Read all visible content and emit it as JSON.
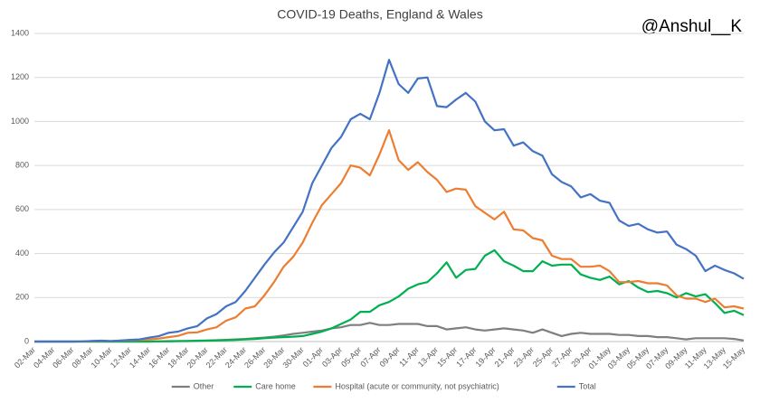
{
  "chart_data": {
    "type": "line",
    "title": "COVID-19 Deaths, England & Wales",
    "annotations": [
      "@Anshul__K"
    ],
    "categories": [
      "02-Mar",
      null,
      "04-Mar",
      null,
      "06-Mar",
      null,
      "08-Mar",
      null,
      "10-Mar",
      null,
      "12-Mar",
      null,
      "14-Mar",
      null,
      "16-Mar",
      null,
      "18-Mar",
      null,
      "20-Mar",
      null,
      "22-Mar",
      null,
      "24-Mar",
      null,
      "26-Mar",
      null,
      "28-Mar",
      null,
      "30-Mar",
      null,
      "01-Apr",
      null,
      "03-Apr",
      null,
      "05-Apr",
      null,
      "07-Apr",
      null,
      "09-Apr",
      null,
      "11-Apr",
      null,
      "13-Apr",
      null,
      "15-Apr",
      null,
      "17-Apr",
      null,
      "19-Apr",
      null,
      "21-Apr",
      null,
      "23-Apr",
      null,
      "25-Apr",
      null,
      "27-Apr",
      null,
      "29-Apr",
      null,
      "01-May",
      null,
      "03-May",
      null,
      "05-May",
      null,
      "07-May",
      null,
      "09-May",
      null,
      "11-May",
      null,
      "13-May",
      null,
      "15-May"
    ],
    "series": [
      {
        "name": "Other",
        "color": "#7f7f7f",
        "values": [
          0,
          0,
          0,
          0,
          0,
          0,
          0,
          0,
          0,
          0,
          0,
          0,
          0,
          1,
          2,
          2,
          3,
          4,
          5,
          6,
          8,
          10,
          12,
          15,
          18,
          22,
          28,
          35,
          40,
          45,
          50,
          60,
          65,
          75,
          75,
          85,
          75,
          75,
          80,
          80,
          80,
          70,
          70,
          55,
          60,
          65,
          55,
          50,
          55,
          60,
          55,
          50,
          40,
          55,
          40,
          25,
          35,
          40,
          35,
          35,
          35,
          30,
          30,
          25,
          25,
          20,
          20,
          15,
          10,
          15,
          15,
          15,
          15,
          12,
          5
        ]
      },
      {
        "name": "Care home",
        "color": "#00b050",
        "values": [
          0,
          0,
          0,
          0,
          0,
          0,
          0,
          0,
          0,
          0,
          0,
          0,
          0,
          1,
          1,
          2,
          2,
          3,
          4,
          5,
          6,
          8,
          10,
          12,
          15,
          18,
          20,
          22,
          25,
          35,
          45,
          60,
          80,
          100,
          135,
          135,
          165,
          180,
          205,
          240,
          260,
          270,
          310,
          360,
          290,
          325,
          330,
          390,
          415,
          365,
          345,
          320,
          320,
          365,
          345,
          350,
          350,
          305,
          290,
          280,
          295,
          260,
          275,
          245,
          225,
          230,
          220,
          200,
          220,
          205,
          215,
          175,
          130,
          140,
          120
        ]
      },
      {
        "name": "Hospital (acute or community, not psychiatric)",
        "color": "#ed7d31",
        "values": [
          0,
          0,
          0,
          0,
          0,
          1,
          2,
          3,
          2,
          4,
          6,
          8,
          10,
          14,
          20,
          26,
          40,
          42,
          55,
          65,
          95,
          110,
          150,
          160,
          210,
          270,
          340,
          385,
          450,
          540,
          620,
          670,
          720,
          800,
          790,
          755,
          850,
          960,
          825,
          780,
          815,
          770,
          735,
          680,
          695,
          690,
          615,
          585,
          555,
          590,
          510,
          505,
          470,
          460,
          390,
          375,
          375,
          340,
          340,
          345,
          320,
          270,
          270,
          275,
          265,
          265,
          255,
          210,
          195,
          195,
          180,
          195,
          155,
          160,
          150
        ]
      },
      {
        "name": "Total",
        "color": "#4472c4",
        "values": [
          0,
          0,
          0,
          0,
          0,
          1,
          3,
          4,
          2,
          5,
          8,
          10,
          18,
          25,
          40,
          45,
          60,
          70,
          105,
          125,
          160,
          180,
          230,
          290,
          350,
          405,
          450,
          520,
          590,
          720,
          800,
          880,
          930,
          1010,
          1035,
          1010,
          1130,
          1280,
          1170,
          1130,
          1195,
          1200,
          1070,
          1065,
          1100,
          1130,
          1090,
          1000,
          960,
          965,
          890,
          905,
          865,
          845,
          760,
          725,
          705,
          655,
          670,
          640,
          630,
          550,
          525,
          535,
          510,
          495,
          500,
          440,
          420,
          390,
          320,
          345,
          325,
          310,
          285
        ]
      }
    ],
    "ylim": [
      0,
      1400
    ],
    "yticks": [
      0,
      200,
      400,
      600,
      800,
      1000,
      1200,
      1400
    ],
    "grid": true,
    "legend": "bottom"
  }
}
